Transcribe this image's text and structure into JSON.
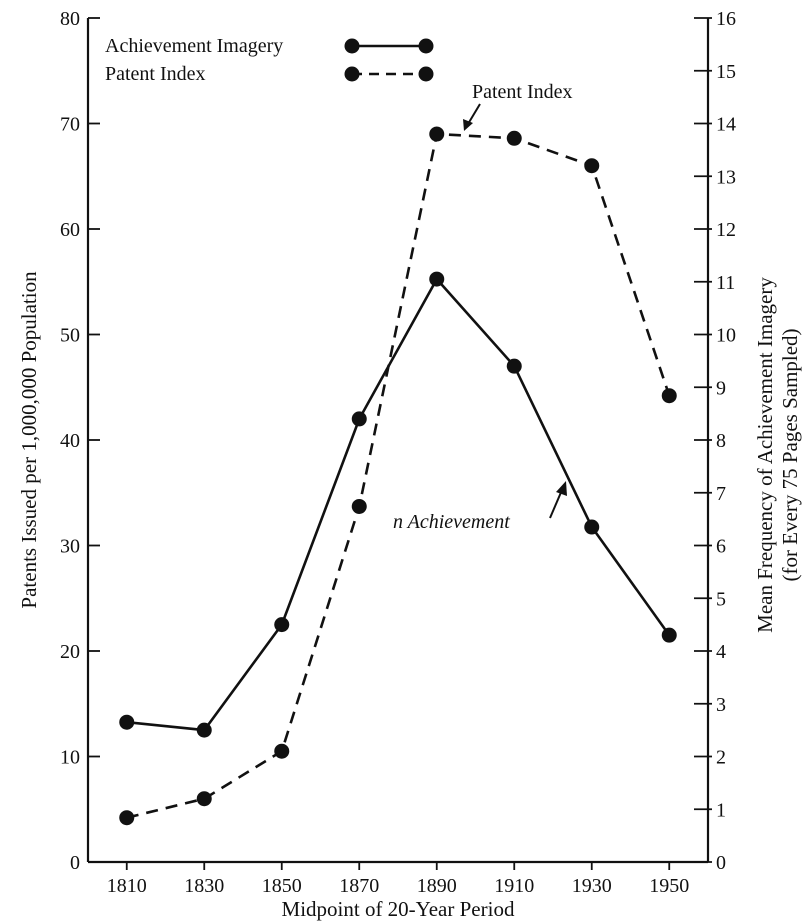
{
  "chart_data": {
    "type": "line",
    "x": [
      1810,
      1830,
      1850,
      1870,
      1890,
      1910,
      1930,
      1950
    ],
    "xlabel": "Midpoint of 20-Year Period",
    "ylabel_left": "Patents Issued per 1,000,000 Population",
    "ylabel_right_lines": [
      "Mean Frequency of Achievement Imagery",
      "(for Every 75 Pages Sampled)"
    ],
    "ylim_left": [
      0,
      80
    ],
    "ylim_right": [
      0,
      16
    ],
    "yticks_left": [
      0,
      10,
      20,
      30,
      40,
      50,
      60,
      70,
      80
    ],
    "yticks_right": [
      0,
      1,
      2,
      3,
      4,
      5,
      6,
      7,
      8,
      9,
      10,
      11,
      12,
      13,
      14,
      15,
      16
    ],
    "series": [
      {
        "name": "Achievement Imagery",
        "axis": "right",
        "style": "solid",
        "values": [
          2.65,
          2.5,
          4.5,
          8.4,
          11.05,
          9.4,
          6.35,
          4.3
        ]
      },
      {
        "name": "Patent Index",
        "axis": "left",
        "style": "dashed",
        "values": [
          4.2,
          6.0,
          10.5,
          33.7,
          69.0,
          68.6,
          66.0,
          44.2
        ]
      }
    ],
    "annotations": [
      "Patent Index",
      "n Achievement"
    ],
    "legend_position": "top-left",
    "grid": false
  },
  "colors": {
    "ink": "#111111",
    "background": "#ffffff"
  }
}
